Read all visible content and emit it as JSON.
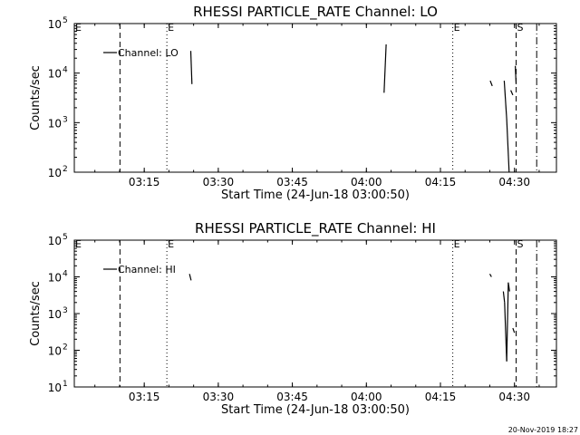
{
  "chart_data": [
    {
      "type": "line",
      "title": "RHESSI PARTICLE_RATE Channel: LO",
      "xlabel": "Start Time (24-Jun-18 03:00:50)",
      "ylabel": "Counts/sec",
      "x_ticks": [
        "03:15",
        "03:30",
        "03:45",
        "04:00",
        "04:15",
        "04:30"
      ],
      "y_scale": "log",
      "y_ticks": [
        {
          "base": "10",
          "exp": "2"
        },
        {
          "base": "10",
          "exp": "3"
        },
        {
          "base": "10",
          "exp": "4"
        },
        {
          "base": "10",
          "exp": "5"
        }
      ],
      "ylim": [
        100,
        100000
      ],
      "xlim": [
        "03:00:50",
        "04:38:30"
      ],
      "legend": {
        "label": "Channel: LO",
        "position": "top-left"
      },
      "markers": [
        {
          "time": "03:10:05",
          "style": "dashed",
          "label": ""
        },
        {
          "time": "03:19:35",
          "style": "dotted",
          "label": "E"
        },
        {
          "time": "04:17:30",
          "style": "dotted",
          "label": "E"
        },
        {
          "time": "04:30:20",
          "style": "dashed",
          "label": "S"
        },
        {
          "time": "04:34:30",
          "style": "dashdot",
          "label": ""
        }
      ],
      "series": [
        {
          "name": "Channel: LO",
          "segments": [
            [
              {
                "x": "03:24:25",
                "y": 28000
              },
              {
                "x": "03:24:40",
                "y": 6000
              }
            ],
            [
              {
                "x": "04:04:00",
                "y": 38000
              },
              {
                "x": "04:03:35",
                "y": 4000
              }
            ],
            [
              {
                "x": "04:25:05",
                "y": 7000
              },
              {
                "x": "04:25:30",
                "y": 5500
              }
            ],
            [
              {
                "x": "04:27:55",
                "y": 7000
              },
              {
                "x": "04:28:25",
                "y": 1200
              }
            ],
            [
              {
                "x": "04:28:25",
                "y": 1200
              },
              {
                "x": "04:28:55",
                "y": 100
              }
            ],
            [
              {
                "x": "04:29:15",
                "y": 4500
              },
              {
                "x": "04:29:40",
                "y": 3600
              }
            ],
            [
              {
                "x": "04:30:10",
                "y": 14000
              },
              {
                "x": "04:30:20",
                "y": 6000
              }
            ]
          ]
        }
      ]
    },
    {
      "type": "line",
      "title": "RHESSI PARTICLE_RATE Channel: HI",
      "xlabel": "Start Time (24-Jun-18 03:00:50)",
      "ylabel": "Counts/sec",
      "x_ticks": [
        "03:15",
        "03:30",
        "03:45",
        "04:00",
        "04:15",
        "04:30"
      ],
      "y_scale": "log",
      "y_ticks": [
        {
          "base": "10",
          "exp": "1"
        },
        {
          "base": "10",
          "exp": "2"
        },
        {
          "base": "10",
          "exp": "3"
        },
        {
          "base": "10",
          "exp": "4"
        },
        {
          "base": "10",
          "exp": "5"
        }
      ],
      "ylim": [
        10,
        100000
      ],
      "xlim": [
        "03:00:50",
        "04:38:30"
      ],
      "legend": {
        "label": "Channel: HI",
        "position": "top-left"
      },
      "markers": [
        {
          "time": "03:10:05",
          "style": "dashed",
          "label": ""
        },
        {
          "time": "03:19:35",
          "style": "dotted",
          "label": "E"
        },
        {
          "time": "04:17:30",
          "style": "dotted",
          "label": "E"
        },
        {
          "time": "04:30:20",
          "style": "dashed",
          "label": "S"
        },
        {
          "time": "04:34:30",
          "style": "dashdot",
          "label": ""
        }
      ],
      "series": [
        {
          "name": "Channel: HI",
          "segments": [
            [
              {
                "x": "03:24:10",
                "y": 12000
              },
              {
                "x": "03:24:30",
                "y": 8000
              }
            ],
            [
              {
                "x": "04:25:00",
                "y": 12000
              },
              {
                "x": "04:25:20",
                "y": 10000
              }
            ],
            [
              {
                "x": "04:27:45",
                "y": 4000
              },
              {
                "x": "04:28:00",
                "y": 2000
              }
            ],
            [
              {
                "x": "04:28:00",
                "y": 2000
              },
              {
                "x": "04:28:25",
                "y": 50
              }
            ],
            [
              {
                "x": "04:28:25",
                "y": 50
              },
              {
                "x": "04:28:45",
                "y": 7000
              }
            ],
            [
              {
                "x": "04:28:45",
                "y": 7000
              },
              {
                "x": "04:29:00",
                "y": 4000
              }
            ],
            [
              {
                "x": "04:29:40",
                "y": 400
              },
              {
                "x": "04:30:00",
                "y": 300
              }
            ]
          ]
        }
      ]
    }
  ],
  "footer": {
    "timestamp": "20-Nov-2019 18:27"
  }
}
